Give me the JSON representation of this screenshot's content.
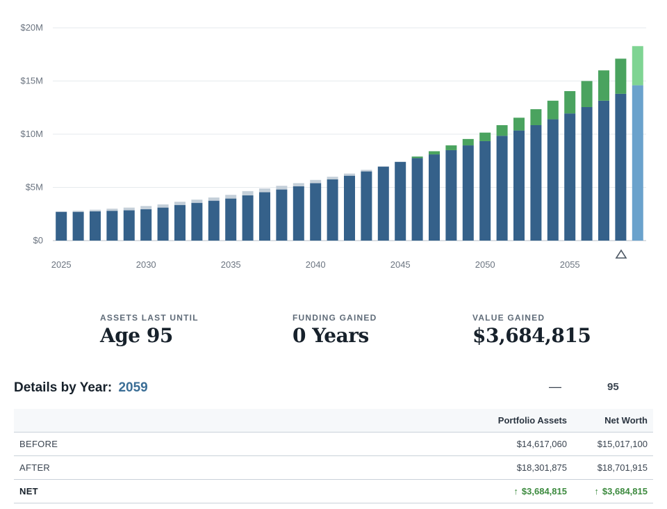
{
  "chart_data": {
    "type": "bar",
    "stacked": true,
    "x": [
      2025,
      2026,
      2027,
      2028,
      2029,
      2030,
      2031,
      2032,
      2033,
      2034,
      2035,
      2036,
      2037,
      2038,
      2039,
      2040,
      2041,
      2042,
      2043,
      2044,
      2045,
      2046,
      2047,
      2048,
      2049,
      2050,
      2051,
      2052,
      2053,
      2054,
      2055,
      2056,
      2057,
      2058,
      2059
    ],
    "xticks": [
      "2025",
      "2030",
      "2035",
      "2040",
      "2045",
      "2050",
      "2055"
    ],
    "yticks": [
      "$0",
      "$5M",
      "$10M",
      "$15M",
      "$20M"
    ],
    "ylim": [
      0,
      20
    ],
    "series": [
      {
        "role": "portfolio_after",
        "color": "#35618a",
        "values": [
          2.7,
          2.7,
          2.75,
          2.8,
          2.85,
          2.95,
          3.1,
          3.35,
          3.55,
          3.75,
          3.95,
          4.25,
          4.55,
          4.8,
          5.1,
          5.4,
          5.75,
          6.1,
          6.5,
          6.95,
          7.4,
          7.75,
          8.1,
          8.5,
          8.95,
          9.35,
          9.85,
          10.35,
          10.85,
          11.4,
          11.95,
          12.55,
          13.15,
          13.8,
          14.6
        ]
      },
      {
        "role": "value_lost",
        "color": "#c4cfd9",
        "values": [
          0.05,
          0.1,
          0.15,
          0.2,
          0.25,
          0.3,
          0.3,
          0.3,
          0.3,
          0.3,
          0.35,
          0.4,
          0.35,
          0.35,
          0.3,
          0.3,
          0.25,
          0.2,
          0.15,
          0.05,
          0,
          0,
          0,
          0,
          0,
          0,
          0,
          0,
          0,
          0,
          0,
          0,
          0,
          0,
          0
        ]
      },
      {
        "role": "value_gained",
        "color": "#4aa35f",
        "values": [
          0,
          0,
          0,
          0,
          0,
          0,
          0,
          0,
          0,
          0,
          0,
          0,
          0,
          0,
          0,
          0,
          0,
          0,
          0,
          0,
          0,
          0.15,
          0.3,
          0.45,
          0.6,
          0.8,
          1.0,
          1.2,
          1.5,
          1.75,
          2.1,
          2.45,
          2.85,
          3.3,
          3.68
        ]
      }
    ],
    "highlight_index": 34,
    "highlight_colors": {
      "base": "#6aa2cc",
      "top": "#7fd493"
    }
  },
  "stats": [
    {
      "label": "ASSETS LAST UNTIL",
      "value": "Age 95"
    },
    {
      "label": "FUNDING GAINED",
      "value": "0 Years"
    },
    {
      "label": "VALUE GAINED",
      "value": "$3,684,815"
    }
  ],
  "details": {
    "title": "Details by Year:",
    "year": "2059",
    "dash": "—",
    "age": "95",
    "columns": [
      "Portfolio Assets",
      "Net Worth"
    ],
    "rows": [
      {
        "label": "BEFORE",
        "portfolio": "$14,617,060",
        "networth": "$15,017,100"
      },
      {
        "label": "AFTER",
        "portfolio": "$18,301,875",
        "networth": "$18,701,915"
      },
      {
        "label": "NET",
        "portfolio": "$3,684,815",
        "networth": "$3,684,815",
        "arrow": "↑"
      }
    ]
  }
}
